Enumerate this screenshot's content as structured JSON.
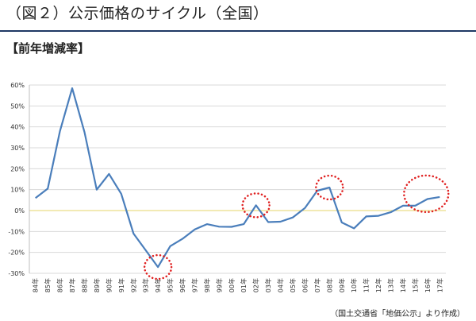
{
  "header": {
    "title": "（図２）公示価格のサイクル（全国）",
    "subtitle": "【前年増減率】"
  },
  "source_note": "（国土交通省「地価公示」より作成）",
  "colors": {
    "line": "#4a7ebb",
    "zero_line": "#e6d46a",
    "grid": "#d9d9d9",
    "highlight": "#e02020",
    "rule": "#1f3864"
  },
  "chart_data": {
    "type": "line",
    "title": "",
    "xlabel": "",
    "ylabel": "",
    "ylim": [
      -0.3,
      0.6
    ],
    "yticks": [
      "60%",
      "50%",
      "40%",
      "30%",
      "20%",
      "10%",
      "0%",
      "-10%",
      "-20%",
      "-30%"
    ],
    "grid": true,
    "categories": [
      "84年",
      "85年",
      "86年",
      "87年",
      "88年",
      "89年",
      "90年",
      "91年",
      "92年",
      "93年",
      "94年",
      "95年",
      "96年",
      "97年",
      "98年",
      "99年",
      "00年",
      "01年",
      "02年",
      "03年",
      "04年",
      "05年",
      "06年",
      "07年",
      "08年",
      "09年",
      "10年",
      "11年",
      "12年",
      "13年",
      "14年",
      "15年",
      "16年",
      "17年"
    ],
    "series": [
      {
        "values": [
          0.06,
          0.105,
          0.38,
          0.585,
          0.375,
          0.1,
          0.175,
          0.08,
          -0.11,
          -0.19,
          -0.27,
          -0.17,
          -0.135,
          -0.09,
          -0.065,
          -0.077,
          -0.078,
          -0.065,
          0.025,
          -0.055,
          -0.053,
          -0.033,
          0.012,
          0.095,
          0.11,
          -0.057,
          -0.085,
          -0.028,
          -0.025,
          -0.008,
          0.023,
          0.023,
          0.055,
          0.065
        ]
      }
    ],
    "highlighted_points": [
      "94年",
      "02年",
      "08年",
      "17年"
    ]
  }
}
